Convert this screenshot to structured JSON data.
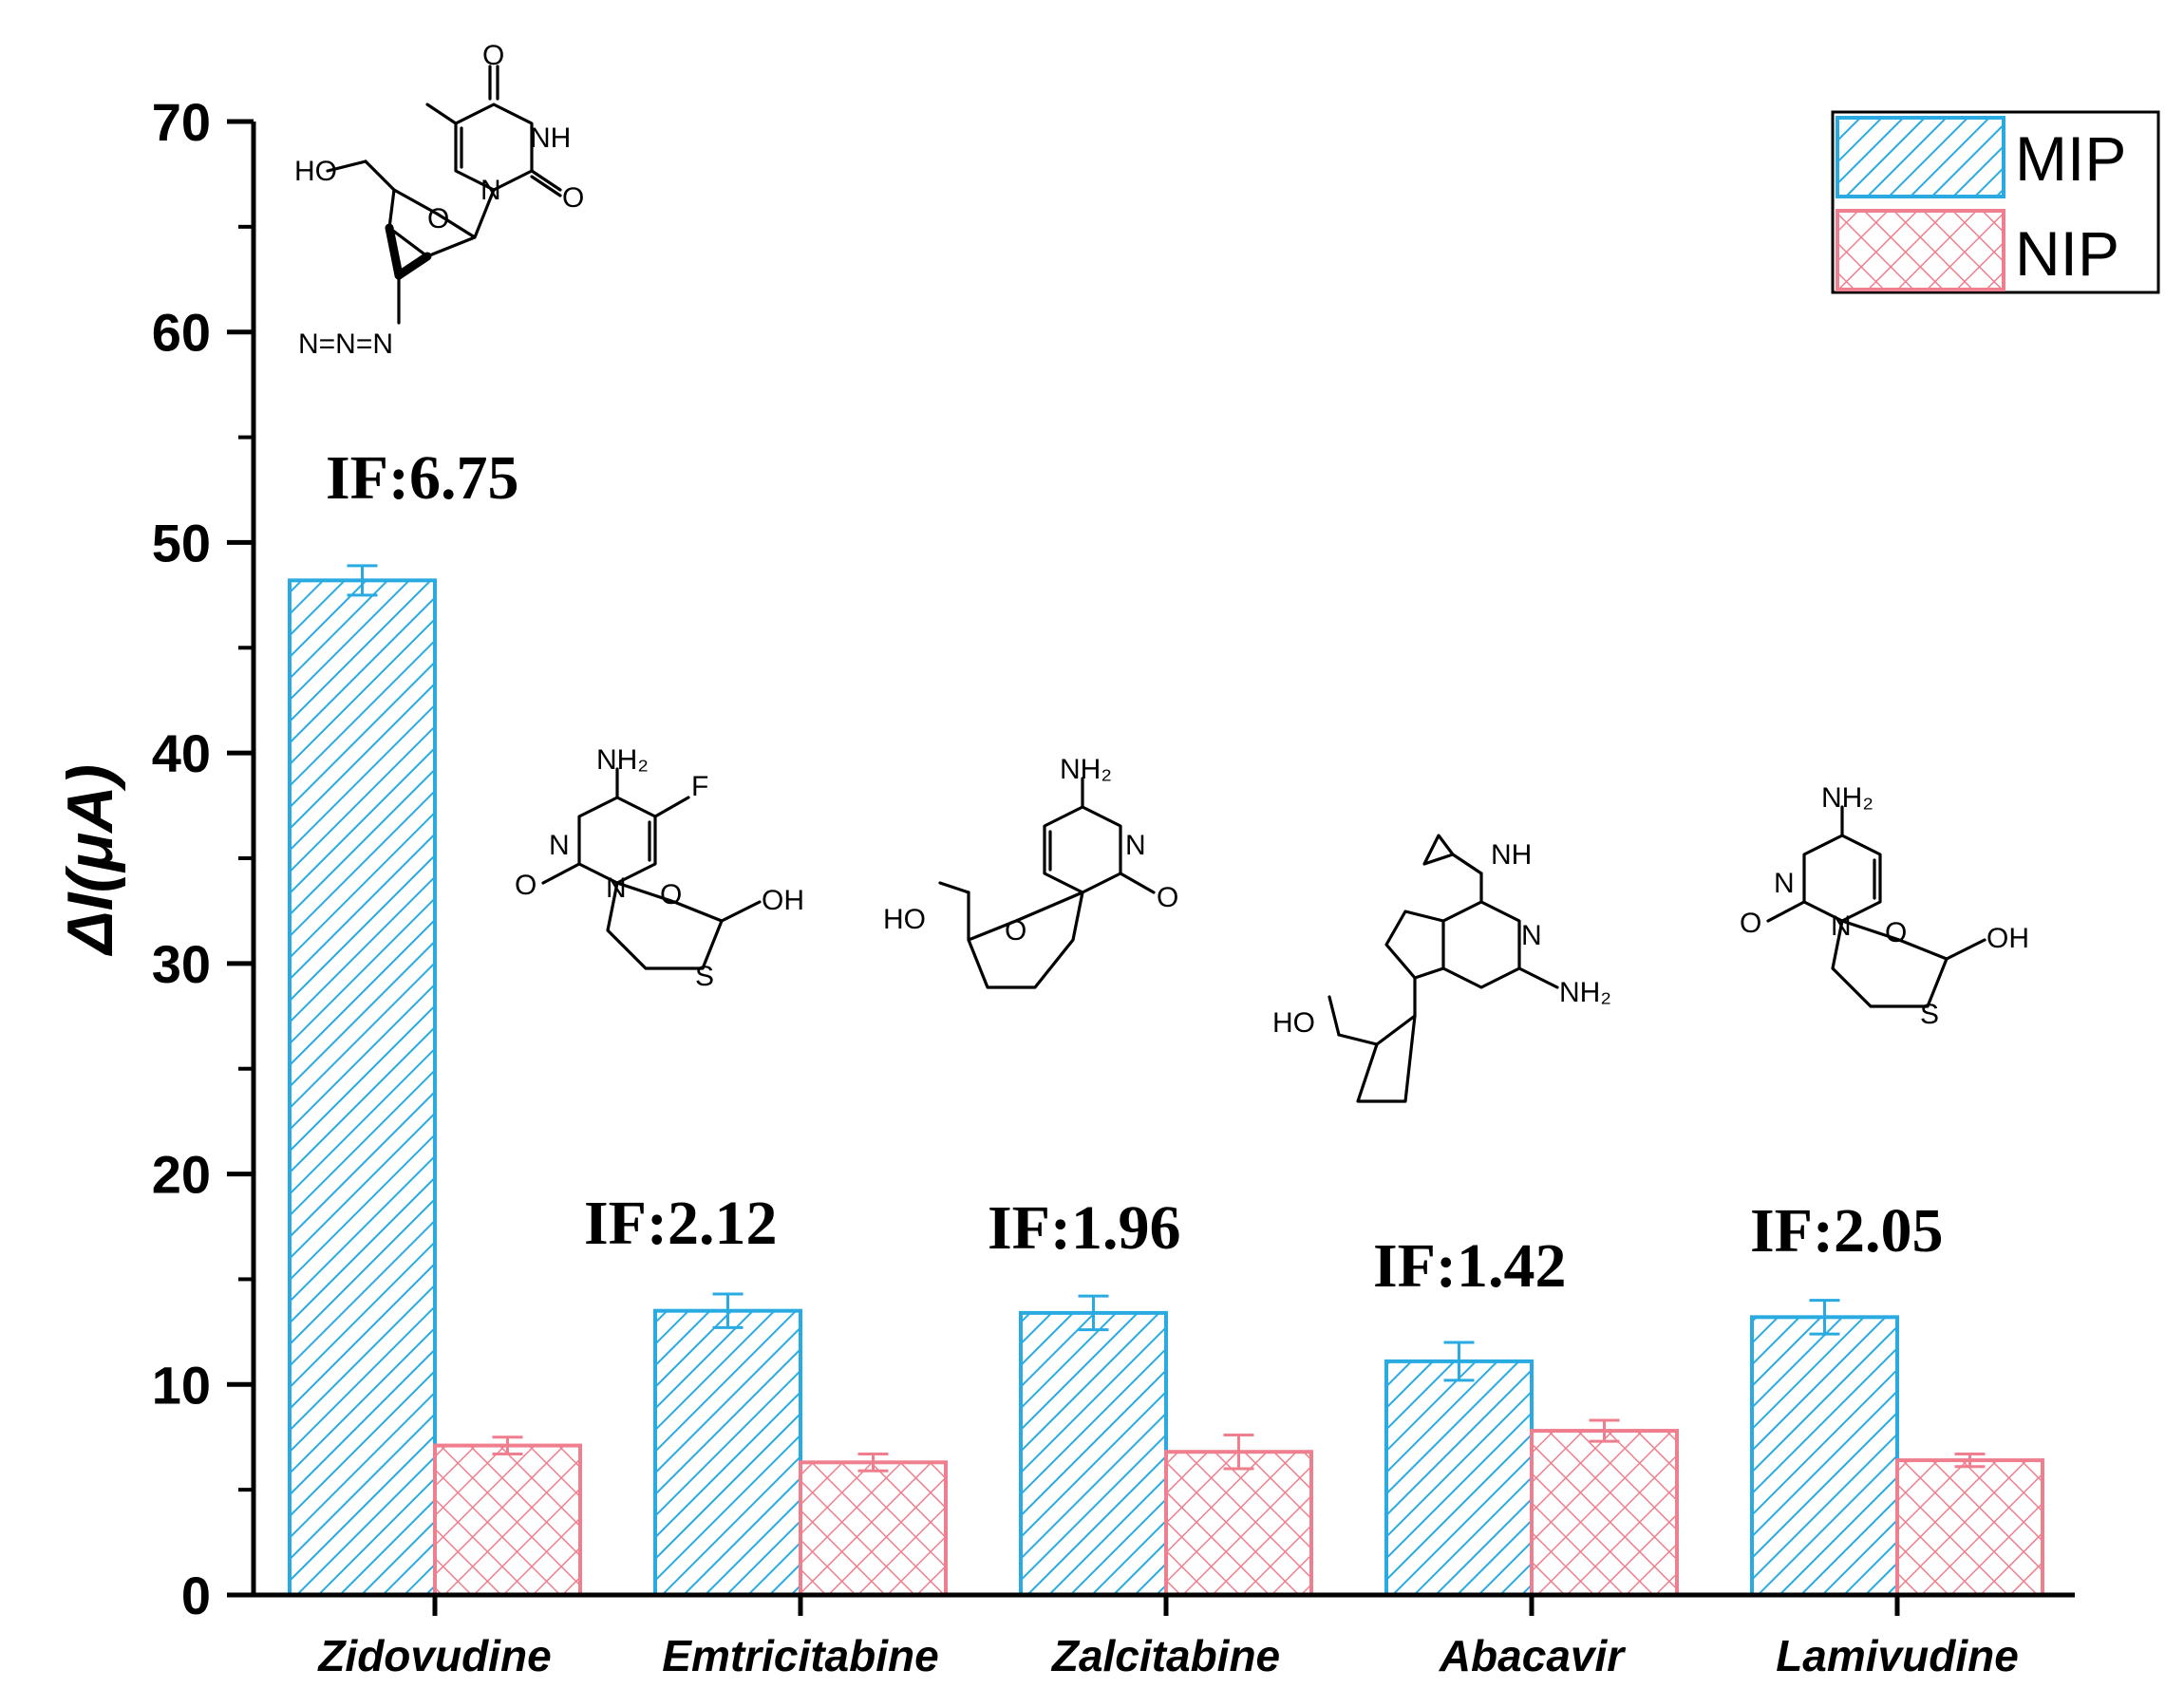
{
  "chart_data": {
    "type": "bar",
    "categories": [
      "Zidovudine",
      "Emtricitabine",
      "Zalcitabine",
      "Abacavir",
      "Lamivudine"
    ],
    "series": [
      {
        "name": "MIP",
        "values": [
          48.2,
          13.5,
          13.4,
          11.1,
          13.2
        ],
        "errors": [
          0.7,
          0.8,
          0.8,
          0.9,
          0.8
        ],
        "color": "#29abe2"
      },
      {
        "name": "NIP",
        "values": [
          7.1,
          6.3,
          6.8,
          7.8,
          6.4
        ],
        "errors": [
          0.4,
          0.4,
          0.8,
          0.5,
          0.3
        ],
        "color": "#ef7f8e"
      }
    ],
    "ylabel": "ΔI(μA)",
    "xlabel": "",
    "ylim": [
      0,
      70
    ],
    "yticks": [
      0,
      10,
      20,
      30,
      40,
      50,
      60,
      70
    ],
    "annotations": [
      "IF:6.75",
      "IF:2.12",
      "IF:1.96",
      "IF:1.42",
      "IF:2.05"
    ],
    "legend": [
      "MIP",
      "NIP"
    ],
    "legend_position": "top-right",
    "grid": false
  }
}
